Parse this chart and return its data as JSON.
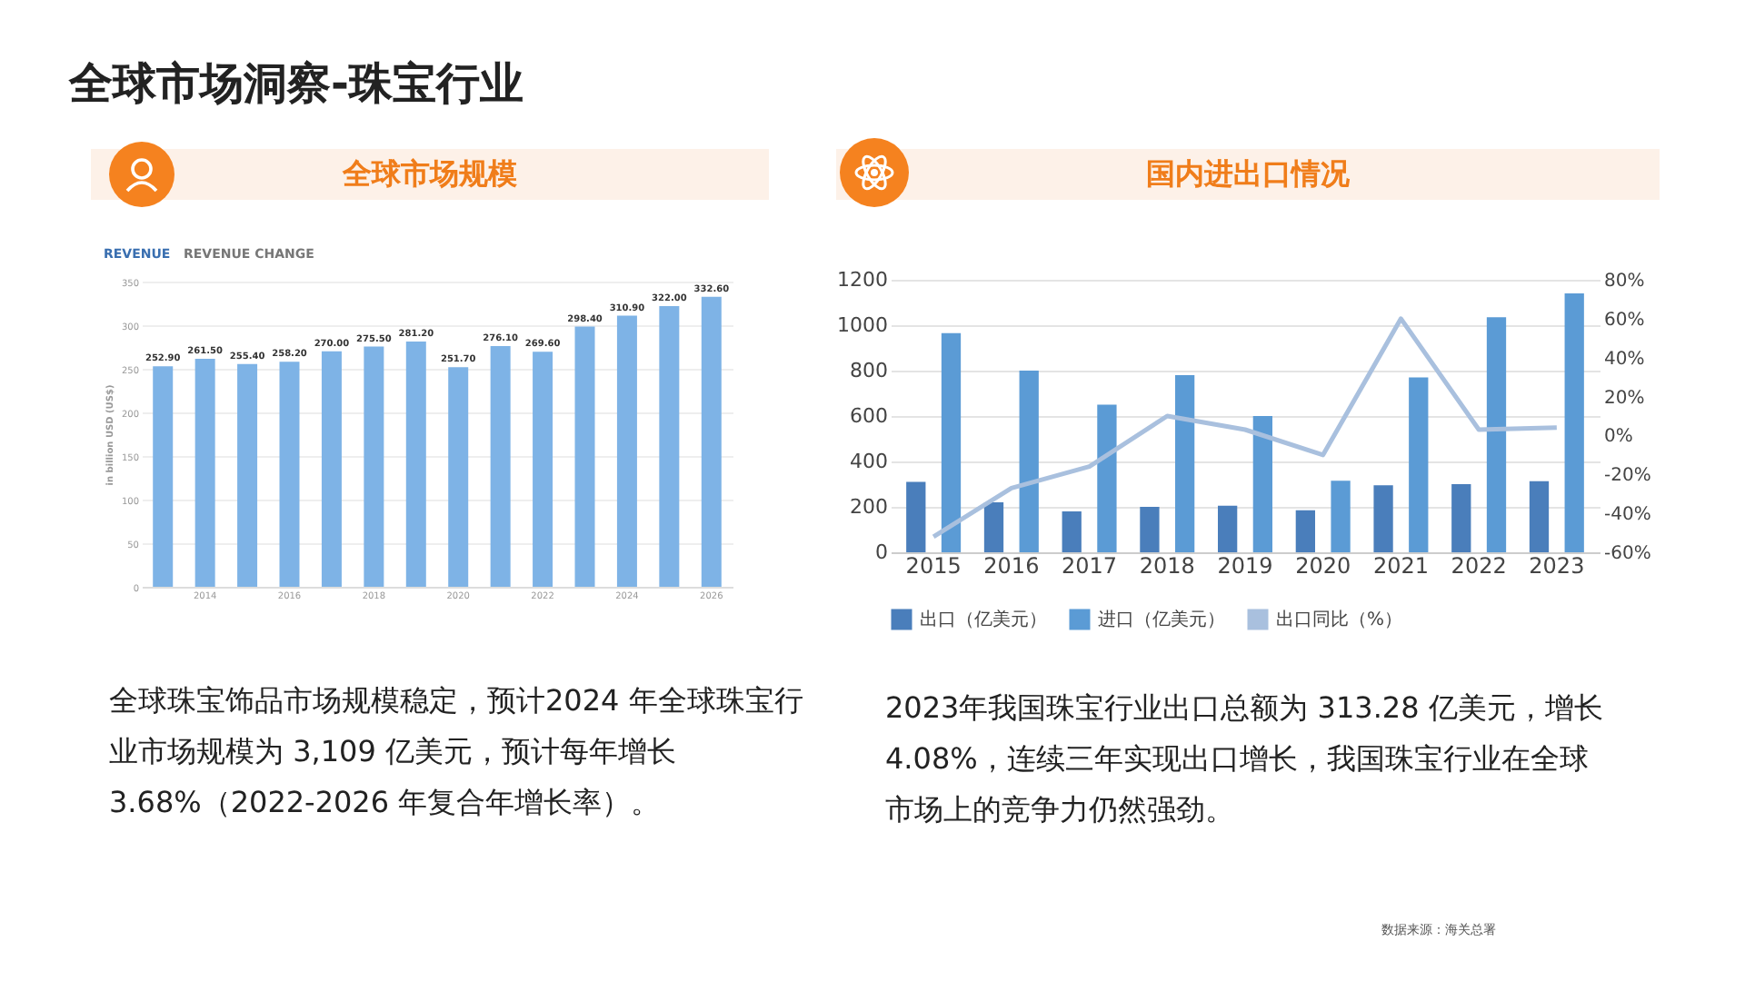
{
  "chart_data": [
    {
      "type": "bar",
      "title": "全球市场规模",
      "ylabel": "in billion USD (US$)",
      "categories": [
        null,
        "2014",
        null,
        "2016",
        null,
        "2018",
        null,
        "2020",
        null,
        "2022",
        null,
        "2024",
        null,
        "2026"
      ],
      "values": [
        252.9,
        261.5,
        255.4,
        258.2,
        270.0,
        275.5,
        281.2,
        251.7,
        276.1,
        269.6,
        298.4,
        310.9,
        322.0,
        332.6
      ],
      "value_labels": [
        "252.90",
        "261.50",
        "255.40",
        "258.20",
        "270.00",
        "275.50",
        "281.20",
        "251.70",
        "276.10",
        "269.60",
        "298.40",
        "310.90",
        "322.00",
        "332.60"
      ],
      "color": "#7eb3e6",
      "ylim": [
        0,
        350
      ],
      "yticks": [
        0,
        50,
        100,
        150,
        200,
        250,
        300,
        350
      ],
      "grid": "y",
      "annotations": [
        "全球市场洞察-珠宝行业",
        "REVENUE",
        "REVENUE CHANGE",
        "全球珠宝饰品市场规模稳定，预计2024 年全球珠宝行业市场规模为 3,109 亿美元，预计每年增长 3.68%（2022-2026 年复合年增长率）。"
      ]
    },
    {
      "type": "bar",
      "title": "国内进出口情况",
      "categories": [
        "2015",
        "2016",
        "2017",
        "2018",
        "2019",
        "2020",
        "2021",
        "2022",
        "2023"
      ],
      "series": [
        {
          "name": "出口（亿美元）",
          "color": "#4a7ebb",
          "values": [
            310,
            220,
            180,
            200,
            205,
            185,
            295,
            300,
            313
          ]
        },
        {
          "name": "进口（亿美元）",
          "color": "#5b9bd5",
          "values": [
            965,
            800,
            650,
            780,
            600,
            315,
            770,
            1035,
            1140
          ]
        },
        {
          "name": "出口同比（%）",
          "type": "line",
          "axis": "y2",
          "color": "#a9c0de",
          "values": [
            -52,
            -27,
            -16,
            10,
            3,
            -10,
            60,
            3,
            4
          ]
        }
      ],
      "ylim": [
        0,
        1200
      ],
      "yticks": [
        0,
        200,
        400,
        600,
        800,
        1000,
        1200
      ],
      "y2lim": [
        -60,
        80
      ],
      "y2ticks": [
        {
          "value": -60,
          "label": "-60%"
        },
        {
          "value": -40,
          "label": "-40%"
        },
        {
          "value": -20,
          "label": "-20%"
        },
        {
          "value": 0,
          "label": "0%"
        },
        {
          "value": 20,
          "label": "20%"
        },
        {
          "value": 40,
          "label": "40%"
        },
        {
          "value": 60,
          "label": "60%"
        },
        {
          "value": 80,
          "label": "80%"
        }
      ],
      "grid": "y",
      "legend": "bottom",
      "marker": "none",
      "line_style": "solid",
      "annotations": [
        "2023年我国珠宝行业出口总额为 313.28 亿美元，增长 4.08%，连续三年实现出口增长，我国珠宝行业在全球市场上的竞争力仍然强劲。",
        "数据来源：海关总署"
      ]
    }
  ]
}
